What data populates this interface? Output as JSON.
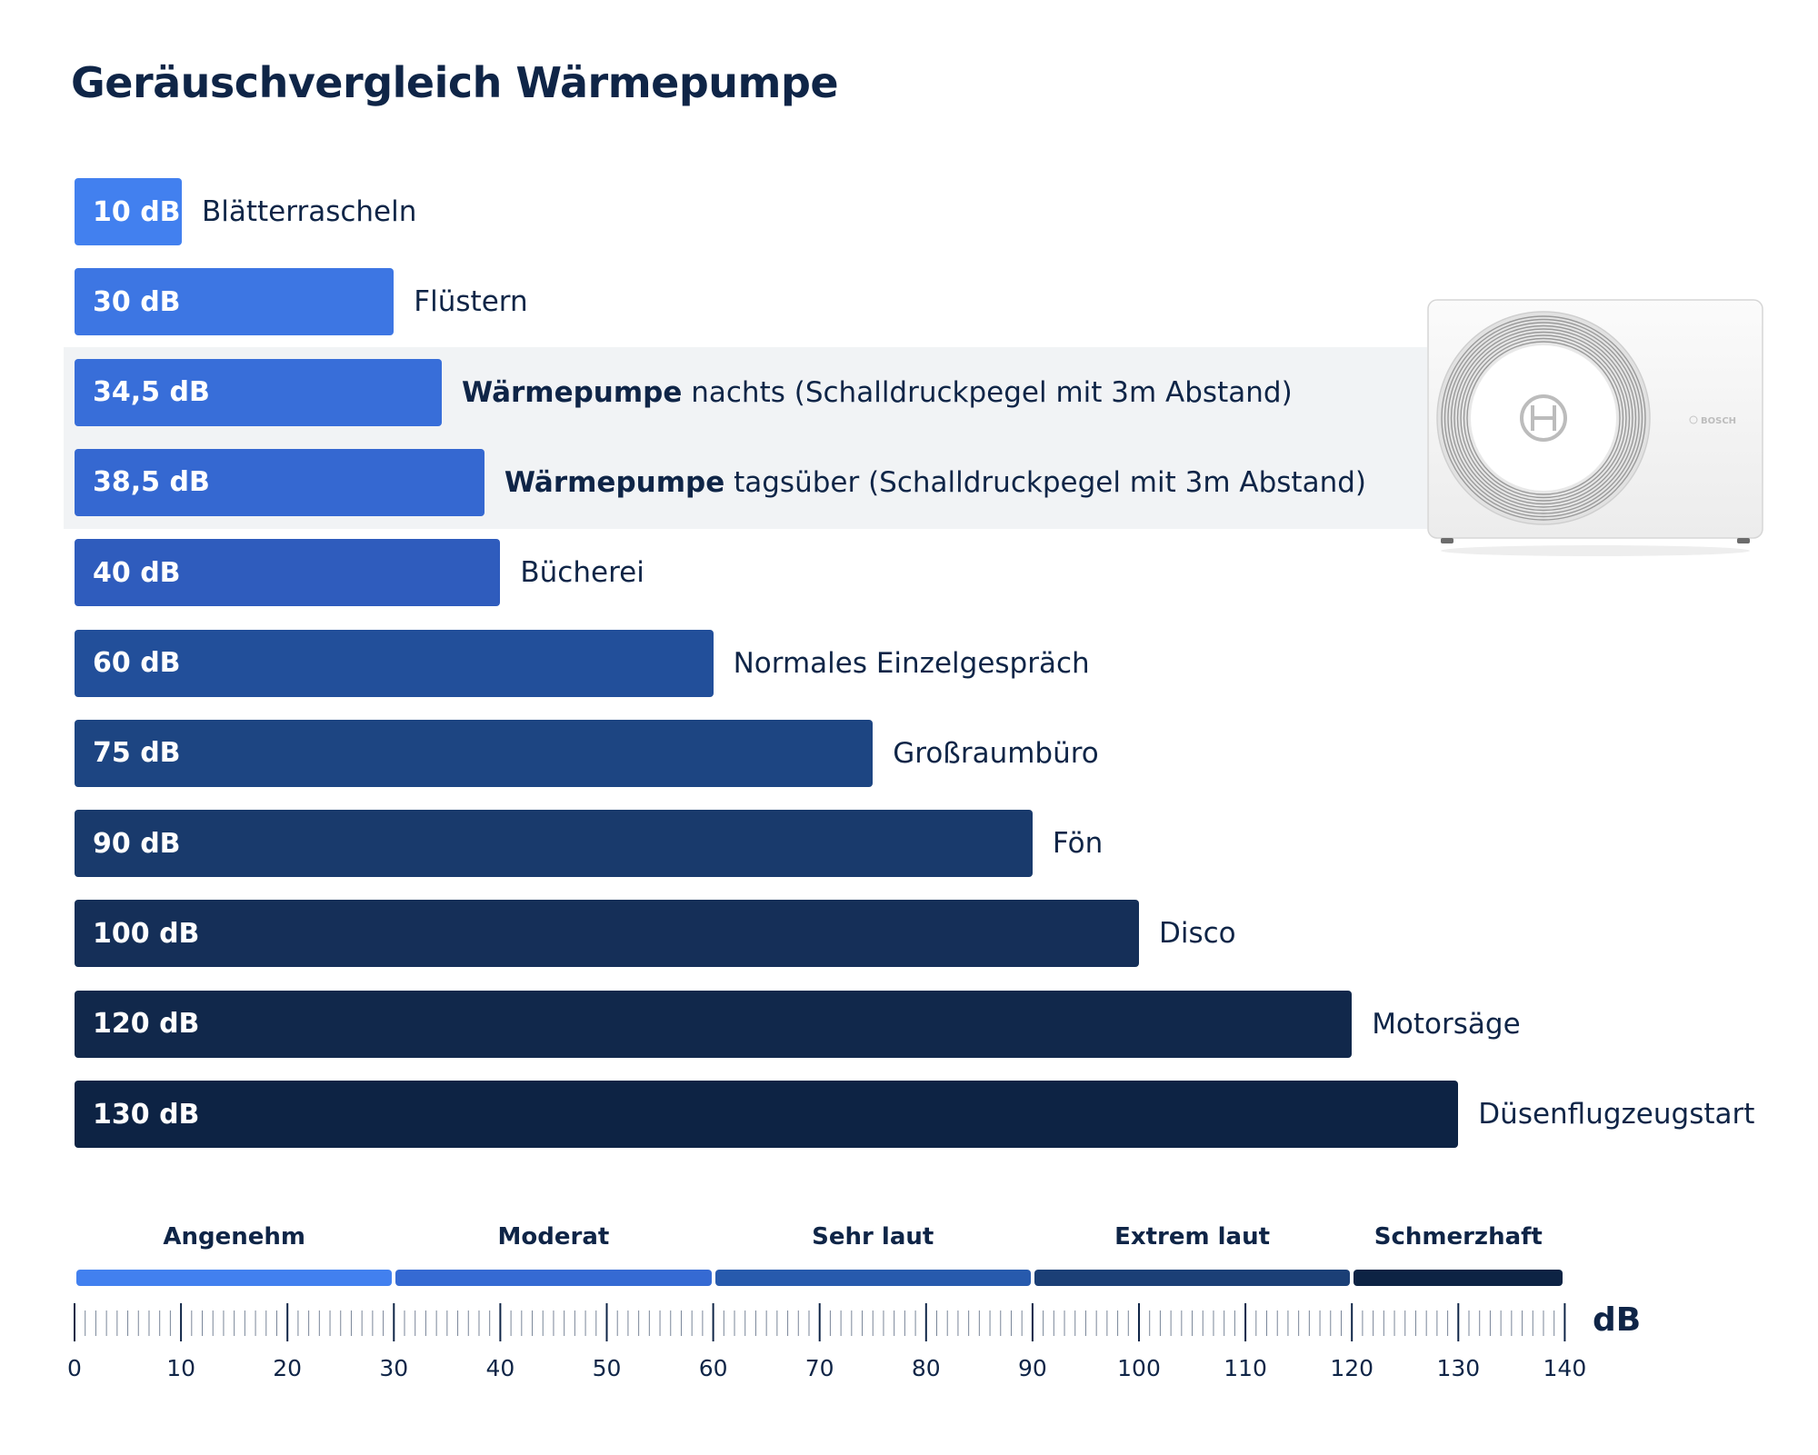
{
  "chart_data": {
    "type": "bar",
    "orientation": "horizontal",
    "title": "Geräuschvergleich Wärmepumpe",
    "xlim": [
      0,
      140
    ],
    "x_unit": "dB",
    "ticks": [
      0,
      10,
      20,
      30,
      40,
      50,
      60,
      70,
      80,
      90,
      100,
      110,
      120,
      130,
      140
    ],
    "rows": [
      {
        "value": 10,
        "value_label": "10 dB",
        "label_bold": "",
        "label": "Blätterrascheln",
        "color": "#4280ef"
      },
      {
        "value": 30,
        "value_label": "30 dB",
        "label_bold": "",
        "label": "Flüstern",
        "color": "#3d76e3"
      },
      {
        "value": 34.5,
        "value_label": "34,5 dB",
        "label_bold": "Wärmepumpe",
        "label": " nachts (Schalldruckpegel mit 3m Abstand)",
        "color": "#386ed9",
        "highlight": true
      },
      {
        "value": 38.5,
        "value_label": "38,5 dB",
        "label_bold": "Wärmepumpe",
        "label": " tagsüber (Schalldruckpegel mit 3m Abstand)",
        "color": "#3568d1",
        "highlight": true
      },
      {
        "value": 40,
        "value_label": "40 dB",
        "label_bold": "",
        "label": "Bücherei",
        "color": "#2f5cbd"
      },
      {
        "value": 60,
        "value_label": "60 dB",
        "label_bold": "",
        "label": "Normales Einzelgespräch",
        "color": "#224f9a"
      },
      {
        "value": 75,
        "value_label": "75 dB",
        "label_bold": "",
        "label": "Großraumbüro",
        "color": "#1d4582"
      },
      {
        "value": 90,
        "value_label": "90 dB",
        "label_bold": "",
        "label": "Fön",
        "color": "#193a6c"
      },
      {
        "value": 100,
        "value_label": "100 dB",
        "label_bold": "",
        "label": "Disco",
        "color": "#152f58"
      },
      {
        "value": 120,
        "value_label": "120 dB",
        "label_bold": "",
        "label": "Motorsäge",
        "color": "#11284b"
      },
      {
        "value": 130,
        "value_label": "130 dB",
        "label_bold": "",
        "label": "Düsenflugzeugstart",
        "color": "#0d2344"
      }
    ],
    "zones": [
      {
        "label": "Angenehm",
        "from": 0,
        "to": 30,
        "color": "#4280ef"
      },
      {
        "label": "Moderat",
        "from": 30,
        "to": 60,
        "color": "#356ad3"
      },
      {
        "label": "Sehr laut",
        "from": 60,
        "to": 90,
        "color": "#275aad"
      },
      {
        "label": "Extrem laut",
        "from": 90,
        "to": 120,
        "color": "#1b3f76"
      },
      {
        "label": "Schmerzhaft",
        "from": 120,
        "to": 140,
        "color": "#0d2344"
      }
    ]
  },
  "image": {
    "brand": "BOSCH"
  }
}
